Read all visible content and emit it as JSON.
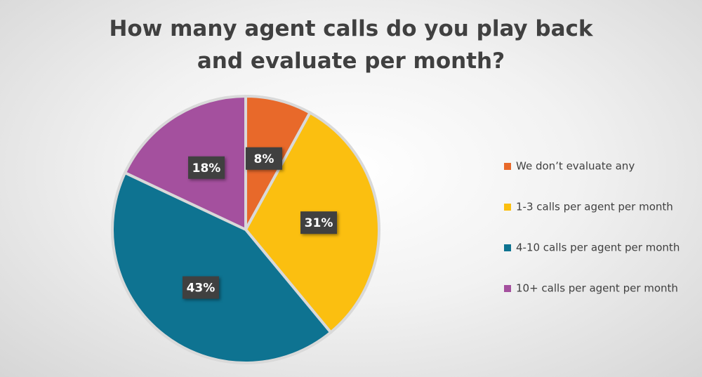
{
  "chart_data": {
    "type": "pie",
    "title": "How many agent calls do you play back and evaluate per month?",
    "categories": [
      "We don’t evaluate any",
      "1-3 calls per agent per month",
      "4-10 calls per agent per month",
      "10+ calls per agent per month"
    ],
    "values": [
      8,
      31,
      43,
      18
    ],
    "value_labels": [
      "8%",
      "31%",
      "43%",
      "18%"
    ],
    "colors": [
      "#e8692a",
      "#fbbf10",
      "#0e7391",
      "#a4509e"
    ],
    "legend": "right"
  }
}
